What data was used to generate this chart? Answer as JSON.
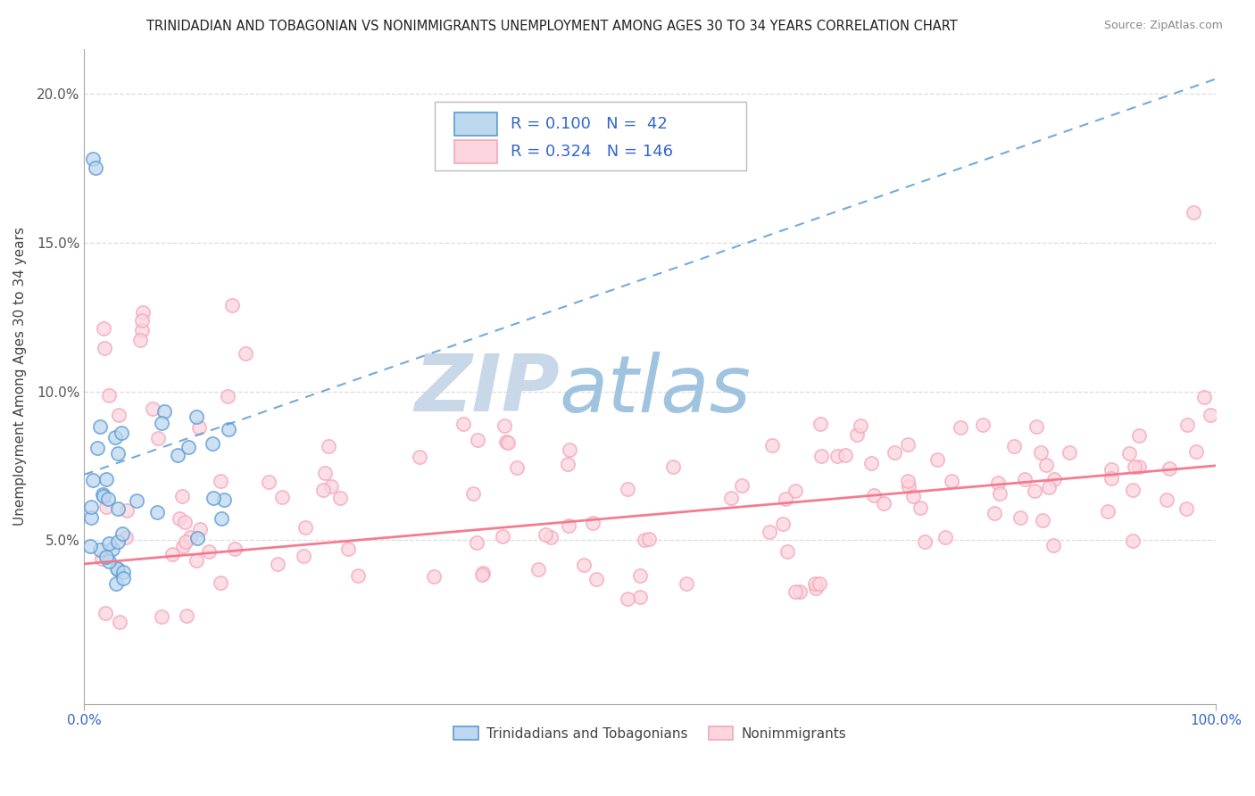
{
  "title": "TRINIDADIAN AND TOBAGONIAN VS NONIMMIGRANTS UNEMPLOYMENT AMONG AGES 30 TO 34 YEARS CORRELATION CHART",
  "source": "Source: ZipAtlas.com",
  "ylabel": "Unemployment Among Ages 30 to 34 years",
  "xlim": [
    0.0,
    1.0
  ],
  "ylim": [
    -0.005,
    0.215
  ],
  "yticks": [
    0.05,
    0.1,
    0.15,
    0.2
  ],
  "ytick_labels": [
    "5.0%",
    "10.0%",
    "15.0%",
    "20.0%"
  ],
  "xtick_labels": [
    "0.0%",
    "100.0%"
  ],
  "blue_edge": "#5b9bd5",
  "blue_face": "#bdd7ee",
  "pink_edge": "#f4a7b9",
  "pink_face": "#fcd5de",
  "trend_blue_color": "#5b9bd5",
  "trend_pink_color": "#f4758a",
  "watermark_zip": "#c8d8e8",
  "watermark_atlas": "#a0c4e0",
  "grid_color": "#d9d9d9",
  "blue_trend_start": 0.072,
  "blue_trend_end": 0.205,
  "pink_trend_start": 0.042,
  "pink_trend_end": 0.075
}
